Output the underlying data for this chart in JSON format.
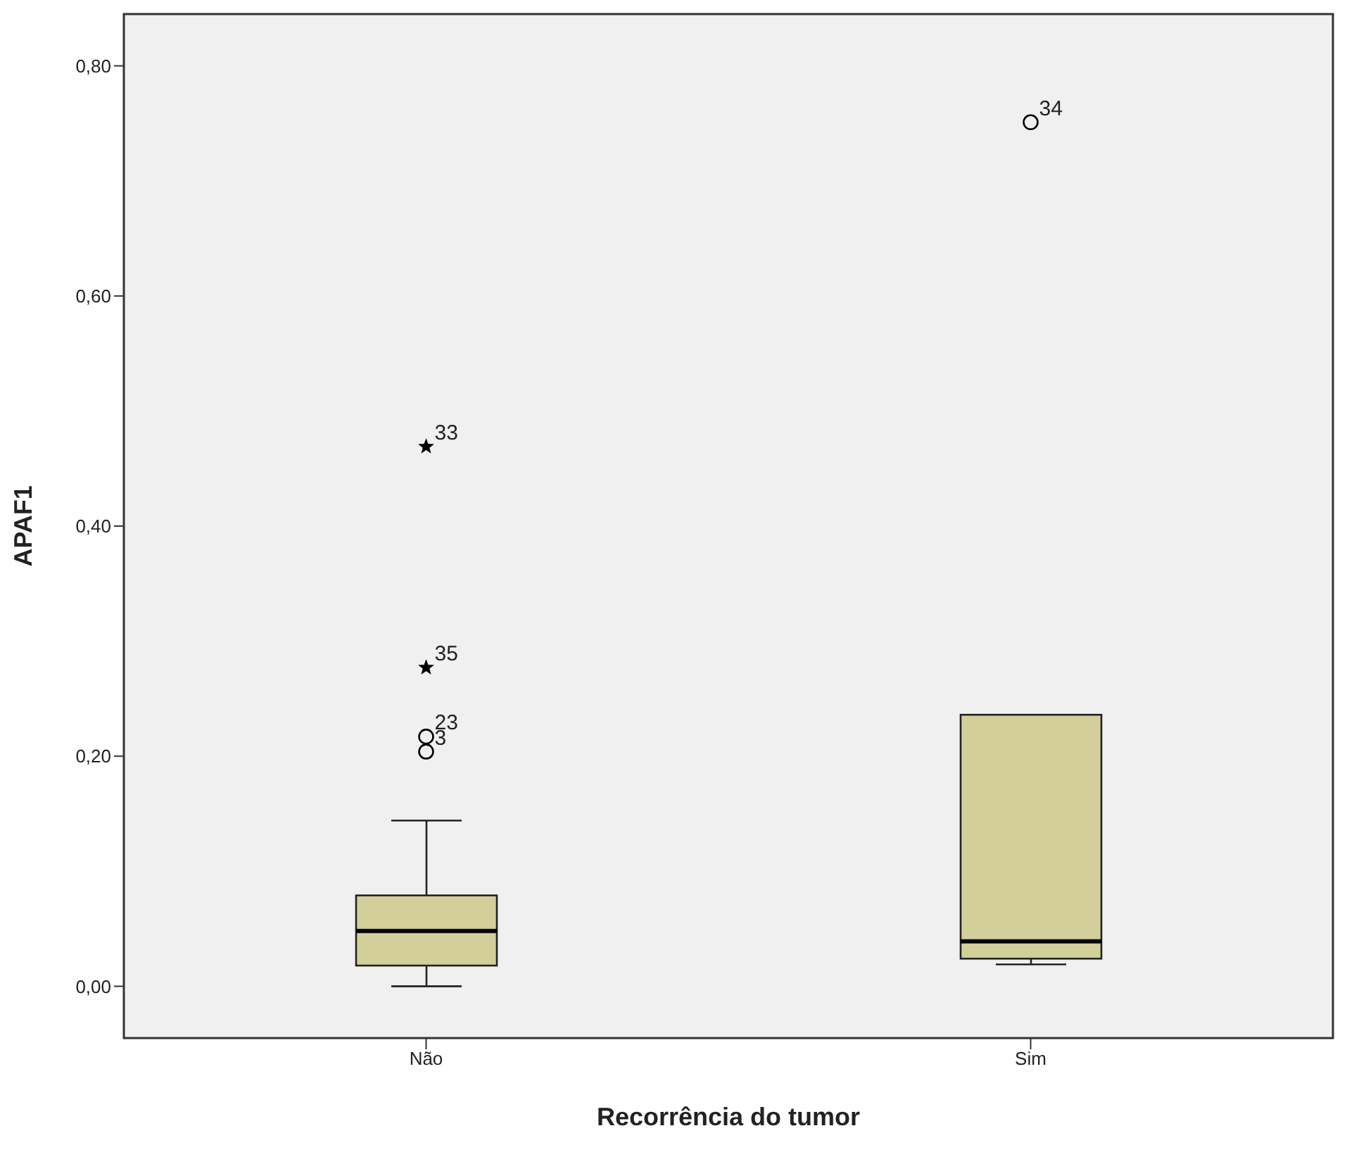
{
  "chart_data": {
    "type": "box",
    "xlabel": "Recorrência do tumor",
    "ylabel": "APAF1",
    "categories": [
      "Não",
      "Sim"
    ],
    "ylim": [
      -0.045,
      0.845
    ],
    "yticks": [
      {
        "value": 0,
        "label": "0,00"
      },
      {
        "value": 0.2,
        "label": "0,20"
      },
      {
        "value": 0.4,
        "label": "0,40"
      },
      {
        "value": 0.6,
        "label": "0,60"
      },
      {
        "value": 0.8,
        "label": "0,80"
      }
    ],
    "color": "#d3cf9a",
    "boxes": [
      {
        "low": 0,
        "q1": 0.018,
        "median": 0.048,
        "q3": 0.079,
        "high": 0.144
      },
      {
        "low": 0.019,
        "q1": 0.024,
        "median": 0.039,
        "q3": 0.236,
        "high": 0.236
      }
    ],
    "series": [
      {
        "type": "scatter",
        "x": [
          "Não",
          "Não"
        ],
        "values": [
          0.469,
          0.277
        ],
        "marker": "star",
        "color": "#000000"
      },
      {
        "type": "scatter",
        "x": [
          "Não",
          "Não",
          "Sim"
        ],
        "values": [
          0.217,
          0.204,
          0.751
        ],
        "marker": "circle",
        "color": "#000000"
      }
    ],
    "annotations": [
      {
        "text": "33",
        "x": "Não",
        "y": 0.469
      },
      {
        "text": "35",
        "x": "Não",
        "y": 0.277
      },
      {
        "text": "23",
        "x": "Não",
        "y": 0.217
      },
      {
        "text": "3",
        "x": "Não",
        "y": 0.204
      },
      {
        "text": "34",
        "x": "Sim",
        "y": 0.751
      }
    ]
  }
}
